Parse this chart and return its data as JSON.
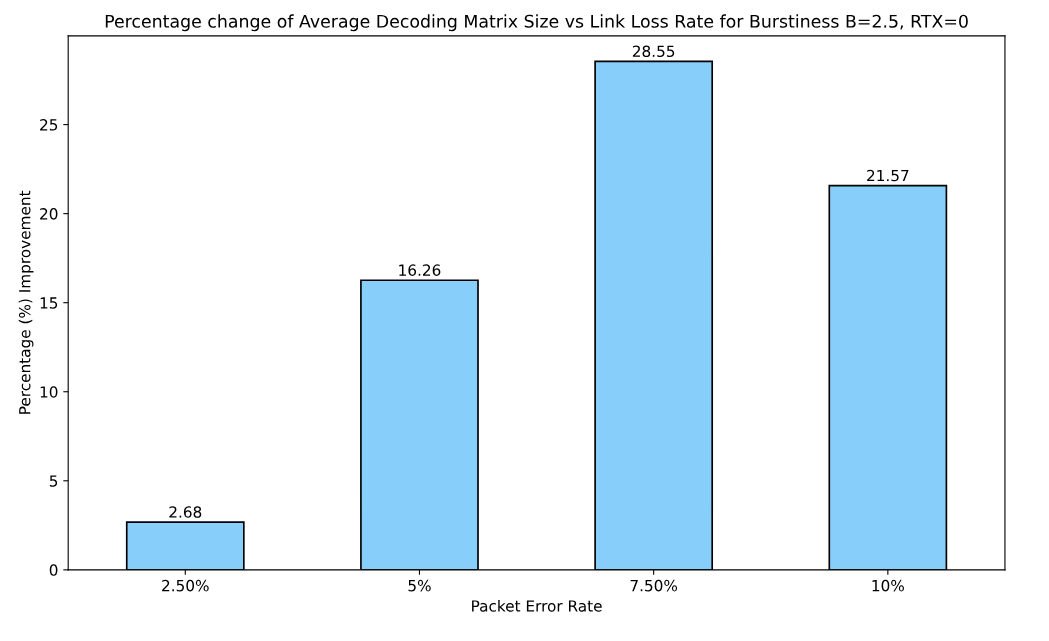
{
  "chart_data": {
    "type": "bar",
    "title": "Percentage change of Average Decoding Matrix Size vs Link Loss Rate for Burstiness B=2.5, RTX=0",
    "xlabel": "Packet Error Rate",
    "ylabel": "Percentage (%) Improvement",
    "categories": [
      "2.50%",
      "5%",
      "7.50%",
      "10%"
    ],
    "values": [
      2.68,
      16.26,
      28.55,
      21.57
    ],
    "color": "#87cefa",
    "ylim": [
      0,
      29.98
    ],
    "yticks": [
      0,
      5,
      10,
      15,
      20,
      25
    ],
    "data_labels": true,
    "grid": false,
    "legend": false
  }
}
